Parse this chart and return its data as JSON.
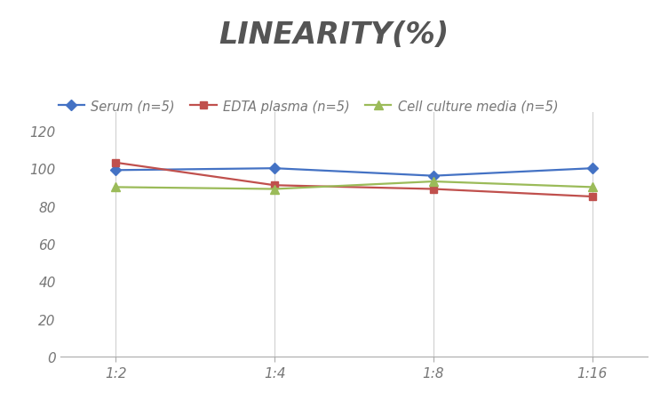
{
  "title": "LINEARITY(%)",
  "x_labels": [
    "1:2",
    "1:4",
    "1:8",
    "1:16"
  ],
  "x_positions": [
    0,
    1,
    2,
    3
  ],
  "series": [
    {
      "label": "Serum (n=5)",
      "values": [
        99,
        100,
        96,
        100
      ],
      "color": "#4472C4",
      "marker": "D",
      "marker_size": 6,
      "linewidth": 1.6
    },
    {
      "label": "EDTA plasma (n=5)",
      "values": [
        103,
        91,
        89,
        85
      ],
      "color": "#C0504D",
      "marker": "s",
      "marker_size": 6,
      "linewidth": 1.6
    },
    {
      "label": "Cell culture media (n=5)",
      "values": [
        90,
        89,
        93,
        90
      ],
      "color": "#9BBB59",
      "marker": "^",
      "marker_size": 7,
      "linewidth": 1.6
    }
  ],
  "ylim": [
    0,
    130
  ],
  "yticks": [
    0,
    20,
    40,
    60,
    80,
    100,
    120
  ],
  "background_color": "#ffffff",
  "grid_color": "#d0d0d0",
  "title_fontsize": 24,
  "title_color": "#555555",
  "tick_color": "#777777",
  "legend_fontsize": 10.5,
  "tick_fontsize": 11
}
